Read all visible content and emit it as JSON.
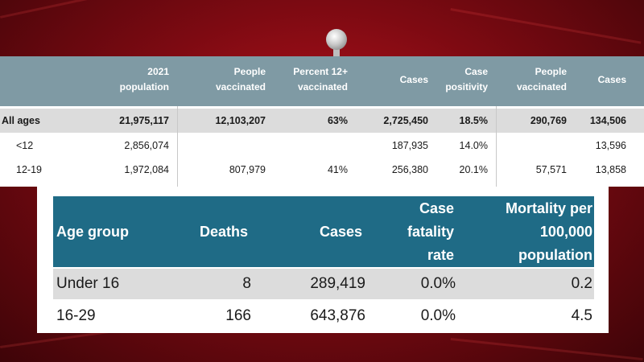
{
  "top_table": {
    "headers": [
      "2021\npopulation",
      "People\nvaccinated",
      "Percent 12+\nvaccinated",
      "Cases",
      "Case\npositivity",
      "People\nvaccinated",
      "Cases"
    ],
    "rows": [
      {
        "label": "All ages",
        "values": [
          "21,975,117",
          "12,103,207",
          "63%",
          "2,725,450",
          "18.5%",
          "290,769",
          "134,506"
        ]
      },
      {
        "label": "<12",
        "values": [
          "2,856,074",
          "",
          "",
          "187,935",
          "14.0%",
          "",
          "13,596"
        ]
      },
      {
        "label": "12-19",
        "values": [
          "1,972,084",
          "807,979",
          "41%",
          "256,380",
          "20.1%",
          "57,571",
          "13,858"
        ]
      }
    ]
  },
  "bottom_table": {
    "headers": [
      "Age group",
      "Deaths",
      "Cases",
      "Case\nfatality\nrate",
      "Mortality per\n100,000\npopulation"
    ],
    "rows": [
      {
        "values": [
          "Under 16",
          "8",
          "289,419",
          "0.0%",
          "0.2"
        ]
      },
      {
        "values": [
          "16-29",
          "166",
          "643,876",
          "0.0%",
          "4.5"
        ]
      }
    ]
  },
  "colors": {
    "background": "#8e0b14",
    "top_header": "#7f9aa4",
    "bottom_header": "#1f6b86",
    "row_shade": "#dcdcdc"
  }
}
